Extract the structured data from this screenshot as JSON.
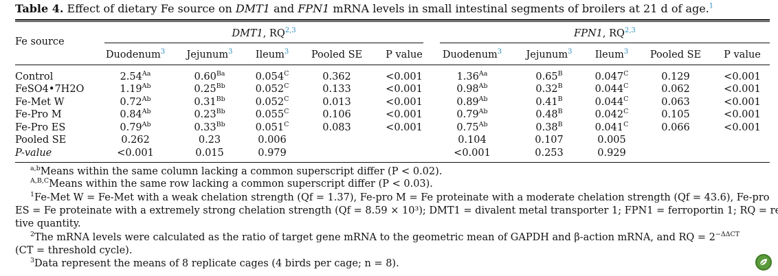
{
  "caption": {
    "label": "Table 4.",
    "text_pre": " Effect of dietary Fe source on ",
    "gene1": "DMT1",
    "text_mid": " and ",
    "gene2": "FPN1",
    "text_post": " mRNA levels in small intestinal segments of broilers at 21 d of age.",
    "note_ref": "1"
  },
  "header": {
    "row_label": "Fe source",
    "group1_gene": "DMT1",
    "group1_suffix": ", RQ",
    "group1_sup": "2,3",
    "group2_gene": "FPN1",
    "group2_suffix": ", RQ",
    "group2_sup": "2,3",
    "columns": [
      {
        "label": "Duodenum",
        "sup": "3"
      },
      {
        "label": "Jejunum",
        "sup": "3"
      },
      {
        "label": "Ileum",
        "sup": "3"
      },
      {
        "label": "Pooled SE",
        "sup": ""
      },
      {
        "label": "P value",
        "sup": ""
      },
      {
        "label": "Duodenum",
        "sup": "3"
      },
      {
        "label": "Jejunum",
        "sup": "3"
      },
      {
        "label": "Ileum",
        "sup": "3"
      },
      {
        "label": "Pooled SE",
        "sup": ""
      },
      {
        "label": "P value",
        "sup": ""
      }
    ]
  },
  "rows": [
    {
      "label": "Control",
      "cells": [
        [
          "2.54",
          "Aa"
        ],
        [
          "0.60",
          "Ba"
        ],
        [
          "0.054",
          "C"
        ],
        [
          "0.362",
          ""
        ],
        [
          "<0.001",
          ""
        ],
        [
          "1.36",
          "Aa"
        ],
        [
          "0.65",
          "B"
        ],
        [
          "0.047",
          "C"
        ],
        [
          "0.129",
          ""
        ],
        [
          "<0.001",
          ""
        ]
      ]
    },
    {
      "label": "FeSO4•7H2O",
      "cells": [
        [
          "1.19",
          "Ab"
        ],
        [
          "0.25",
          "Bb"
        ],
        [
          "0.052",
          "C"
        ],
        [
          "0.133",
          ""
        ],
        [
          "<0.001",
          ""
        ],
        [
          "0.98",
          "Ab"
        ],
        [
          "0.32",
          "B"
        ],
        [
          "0.044",
          "C"
        ],
        [
          "0.062",
          ""
        ],
        [
          "<0.001",
          ""
        ]
      ]
    },
    {
      "label": "Fe-Met W",
      "cells": [
        [
          "0.72",
          "Ab"
        ],
        [
          "0.31",
          "Bb"
        ],
        [
          "0.052",
          "C"
        ],
        [
          "0.013",
          ""
        ],
        [
          "<0.001",
          ""
        ],
        [
          "0.89",
          "Ab"
        ],
        [
          "0.41",
          "B"
        ],
        [
          "0.044",
          "C"
        ],
        [
          "0.063",
          ""
        ],
        [
          "<0.001",
          ""
        ]
      ]
    },
    {
      "label": "Fe-Pro M",
      "cells": [
        [
          "0.84",
          "Ab"
        ],
        [
          "0.23",
          "Bb"
        ],
        [
          "0.055",
          "C"
        ],
        [
          "0.106",
          ""
        ],
        [
          "<0.001",
          ""
        ],
        [
          "0.79",
          "Ab"
        ],
        [
          "0.48",
          "B"
        ],
        [
          "0.042",
          "C"
        ],
        [
          "0.105",
          ""
        ],
        [
          "<0.001",
          ""
        ]
      ]
    },
    {
      "label": "Fe-Pro ES",
      "cells": [
        [
          "0.79",
          "Ab"
        ],
        [
          "0.33",
          "Bb"
        ],
        [
          "0.051",
          "C"
        ],
        [
          "0.083",
          ""
        ],
        [
          "<0.001",
          ""
        ],
        [
          "0.75",
          "Ab"
        ],
        [
          "0.38",
          "B"
        ],
        [
          "0.041",
          "C"
        ],
        [
          "0.066",
          ""
        ],
        [
          "<0.001",
          ""
        ]
      ]
    },
    {
      "label": "Pooled SE",
      "cells": [
        [
          "0.262",
          ""
        ],
        [
          "0.23",
          ""
        ],
        [
          "0.006",
          ""
        ],
        [
          "",
          ""
        ],
        [
          "",
          ""
        ],
        [
          "0.104",
          ""
        ],
        [
          "0.107",
          ""
        ],
        [
          "0.005",
          ""
        ],
        [
          "",
          ""
        ],
        [
          "",
          ""
        ]
      ]
    },
    {
      "label": "P-value",
      "cells": [
        [
          "<0.001",
          ""
        ],
        [
          "0.015",
          ""
        ],
        [
          "0.979",
          ""
        ],
        [
          "",
          ""
        ],
        [
          "",
          ""
        ],
        [
          "<0.001",
          ""
        ],
        [
          "0.253",
          ""
        ],
        [
          "0.929",
          ""
        ],
        [
          "",
          ""
        ],
        [
          "",
          ""
        ]
      ]
    }
  ],
  "footnotes": {
    "ab_sup": "a,b",
    "ab_text": "Means within the same column lacking a common superscript differ (P < 0.02).",
    "ABC_sup": "A,B,C",
    "ABC_text": "Means within the same row lacking a common superscript differ (P < 0.03).",
    "n1_sup": "1",
    "n1_line1": "Fe-Met W = Fe-Met with a weak chelation strength (Qf = 1.37), Fe-pro M = Fe proteinate with a moderate chelation strength (Qf = 43.6), Fe-pro",
    "n1_line2": "ES = Fe proteinate with a extremely strong chelation strength (Qf = 8.59 × 10³); DMT1 = divalent metal transporter 1; FPN1 = ferroportin 1; RQ = rela-",
    "n1_line3": "tive quantity.",
    "n2_sup": "2",
    "n2_line1": "The mRNA levels were calculated as the ratio of target gene mRNA to the geometric mean of GAPDH and β-action mRNA, and RQ = 2",
    "n2_exp": "−ΔΔCT",
    "n2_line2": "(CT = threshold cycle).",
    "n3_sup": "3",
    "n3_text": "Data represent the means of 8 replicate cages (4 birds per cage; n = 8)."
  },
  "colors": {
    "rule": "#111111",
    "link": "#2a8fbf",
    "logo": "#5a9a3a"
  },
  "icons": {
    "logo": "leaf-logo-icon"
  }
}
